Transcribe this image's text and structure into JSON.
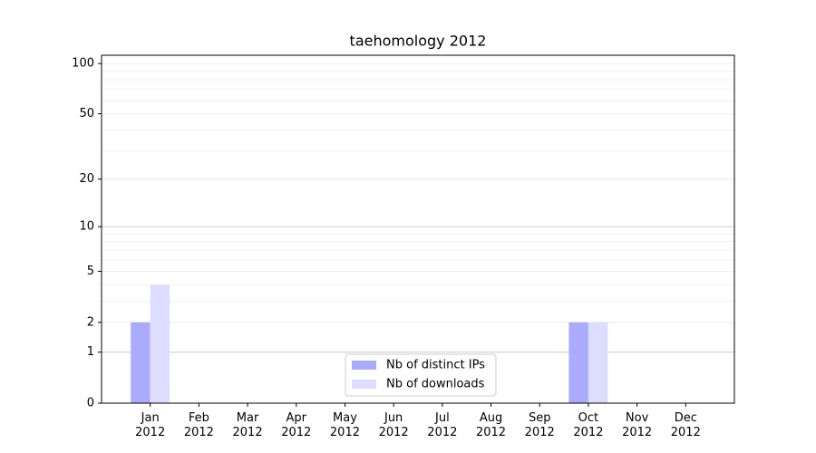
{
  "chart_data": {
    "type": "bar",
    "title": "taehomology 2012",
    "categories": [
      "Jan 2012",
      "Feb 2012",
      "Mar 2012",
      "Apr 2012",
      "May 2012",
      "Jun 2012",
      "Jul 2012",
      "Aug 2012",
      "Sep 2012",
      "Oct 2012",
      "Nov 2012",
      "Dec 2012"
    ],
    "series": [
      {
        "name": "Nb of distinct IPs",
        "color": "#aaaaff",
        "values": [
          2,
          0,
          0,
          0,
          0,
          0,
          0,
          0,
          0,
          2,
          0,
          0
        ]
      },
      {
        "name": "Nb of downloads",
        "color": "#ddddff",
        "values": [
          4,
          0,
          0,
          0,
          0,
          0,
          0,
          0,
          0,
          2,
          0,
          0
        ]
      }
    ],
    "yscale": "log1p",
    "ylim": [
      0,
      112
    ],
    "yticks": [
      0,
      1,
      2,
      5,
      10,
      20,
      50,
      100
    ],
    "grid": true,
    "legend": "lower center"
  }
}
